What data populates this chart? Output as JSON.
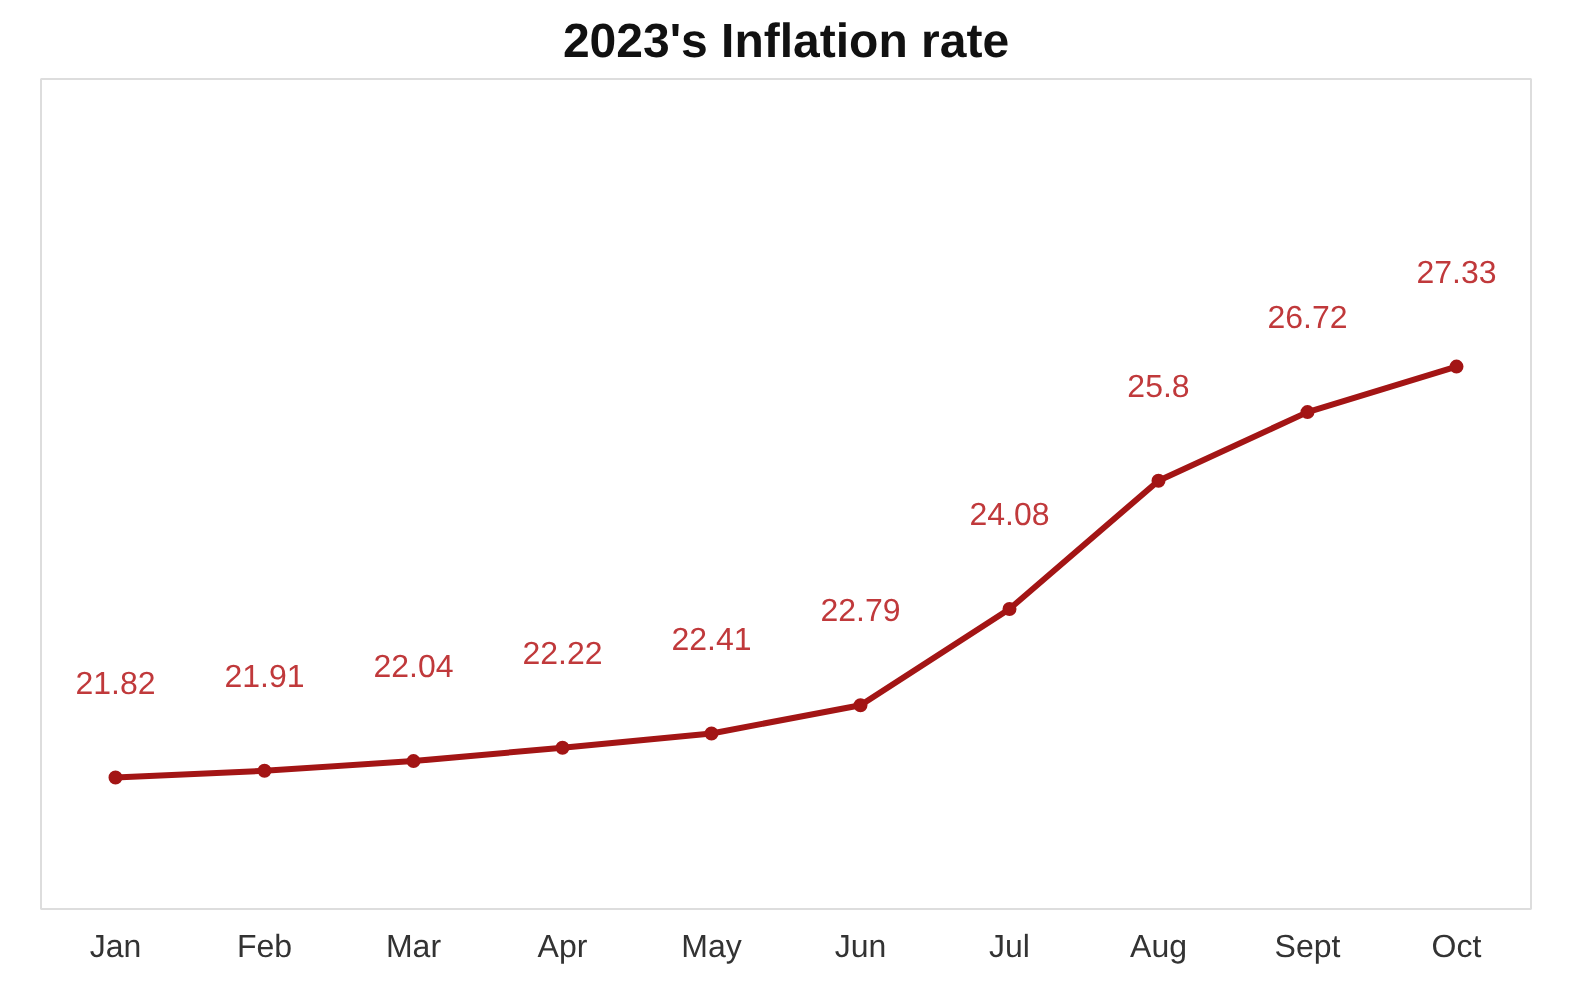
{
  "chart_data": {
    "type": "line",
    "title": "2023's Inflation rate",
    "categories": [
      "Jan",
      "Feb",
      "Mar",
      "Apr",
      "May",
      "Jun",
      "Jul",
      "Aug",
      "Sept",
      "Oct"
    ],
    "series": [
      {
        "color": "#a31515",
        "values": [
          21.82,
          21.91,
          22.04,
          22.22,
          22.41,
          22.79,
          24.08,
          25.8,
          26.72,
          27.33
        ]
      }
    ],
    "data_labels": true,
    "grid": false,
    "marker": "circle",
    "line_style": "solid"
  }
}
